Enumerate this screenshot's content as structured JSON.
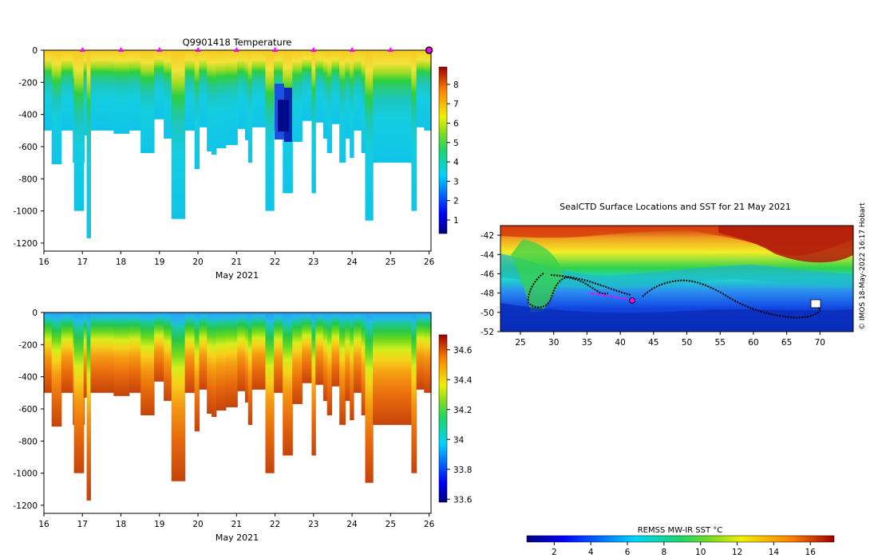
{
  "chart_data": [
    {
      "id": "temperature",
      "type": "heatmap",
      "title": "Q9901418  Temperature",
      "xlabel": "May 2021",
      "ylabel": "",
      "x_ticks": [
        "16",
        "17",
        "18",
        "19",
        "20",
        "21",
        "22",
        "23",
        "24",
        "25",
        "26"
      ],
      "x_range": [
        16,
        26.05
      ],
      "y_ticks": [
        "0",
        "-200",
        "-400",
        "-600",
        "-800",
        "-1000",
        "-1200"
      ],
      "y_range": [
        -1250,
        0
      ],
      "colorbar_ticks": [
        "1",
        "2",
        "3",
        "4",
        "5",
        "6",
        "7",
        "8"
      ],
      "colorbar_range": [
        0.3,
        8.9
      ],
      "marker_color": "#ff00ff",
      "markers_x": [
        17,
        18,
        19,
        20,
        21,
        22,
        23,
        24,
        25
      ],
      "last_marker_x": 26,
      "profile_columns": [
        {
          "x": 16.0,
          "w": 0.2,
          "depth": 500
        },
        {
          "x": 16.2,
          "w": 0.25,
          "depth": 710
        },
        {
          "x": 16.45,
          "w": 0.3,
          "depth": 500
        },
        {
          "x": 16.75,
          "w": 0.3,
          "depth": 700
        },
        {
          "x": 16.8,
          "w": 0.0,
          "depth": 0
        },
        {
          "x": 16.78,
          "w": 0.25,
          "depth": 1000
        },
        {
          "x": 17.03,
          "w": 0.08,
          "depth": 530
        },
        {
          "x": 17.11,
          "w": 0.1,
          "depth": 1170
        },
        {
          "x": 17.21,
          "w": 0.6,
          "depth": 500
        },
        {
          "x": 17.81,
          "w": 0.4,
          "depth": 520
        },
        {
          "x": 18.21,
          "w": 0.3,
          "depth": 500
        },
        {
          "x": 18.51,
          "w": 0.35,
          "depth": 640
        },
        {
          "x": 18.86,
          "w": 0.25,
          "depth": 430
        },
        {
          "x": 19.11,
          "w": 0.2,
          "depth": 550
        },
        {
          "x": 19.31,
          "w": 0.35,
          "depth": 1050
        },
        {
          "x": 19.66,
          "w": 0.25,
          "depth": 500
        },
        {
          "x": 19.91,
          "w": 0.12,
          "depth": 740
        },
        {
          "x": 20.03,
          "w": 0.2,
          "depth": 480
        },
        {
          "x": 20.23,
          "w": 0.12,
          "depth": 630
        },
        {
          "x": 20.35,
          "w": 0.12,
          "depth": 650
        },
        {
          "x": 20.47,
          "w": 0.25,
          "depth": 610
        },
        {
          "x": 20.72,
          "w": 0.3,
          "depth": 590
        },
        {
          "x": 21.02,
          "w": 0.2,
          "depth": 490
        },
        {
          "x": 21.22,
          "w": 0.08,
          "depth": 560
        },
        {
          "x": 21.3,
          "w": 0.1,
          "depth": 700
        },
        {
          "x": 21.4,
          "w": 0.35,
          "depth": 480
        },
        {
          "x": 21.75,
          "w": 0.22,
          "depth": 1000
        },
        {
          "x": 21.97,
          "w": 0.23,
          "depth": 500
        },
        {
          "x": 22.2,
          "w": 0.25,
          "depth": 890
        },
        {
          "x": 22.45,
          "w": 0.25,
          "depth": 570
        },
        {
          "x": 22.7,
          "w": 0.25,
          "depth": 440
        },
        {
          "x": 22.95,
          "w": 0.1,
          "depth": 890
        },
        {
          "x": 23.05,
          "w": 0.2,
          "depth": 450
        },
        {
          "x": 23.25,
          "w": 0.1,
          "depth": 550
        },
        {
          "x": 23.35,
          "w": 0.12,
          "depth": 640
        },
        {
          "x": 23.47,
          "w": 0.2,
          "depth": 460
        },
        {
          "x": 23.67,
          "w": 0.15,
          "depth": 700
        },
        {
          "x": 23.82,
          "w": 0.12,
          "depth": 550
        },
        {
          "x": 23.94,
          "w": 0.1,
          "depth": 670
        },
        {
          "x": 24.04,
          "w": 0.2,
          "depth": 500
        },
        {
          "x": 24.24,
          "w": 0.1,
          "depth": 640
        },
        {
          "x": 24.34,
          "w": 0.2,
          "depth": 1060
        },
        {
          "x": 24.54,
          "w": 0.3,
          "depth": 700
        },
        {
          "x": 24.84,
          "w": 0.7,
          "depth": 700
        },
        {
          "x": 25.54,
          "w": 0.13,
          "depth": 1000
        },
        {
          "x": 25.67,
          "w": 0.2,
          "depth": 480
        },
        {
          "x": 25.87,
          "w": 0.18,
          "depth": 500
        }
      ]
    },
    {
      "id": "salinity",
      "type": "heatmap",
      "title": "",
      "xlabel": "May 2021",
      "ylabel": "",
      "x_ticks": [
        "16",
        "17",
        "18",
        "19",
        "20",
        "21",
        "22",
        "23",
        "24",
        "25",
        "26"
      ],
      "x_range": [
        16,
        26.05
      ],
      "y_ticks": [
        "0",
        "-200",
        "-400",
        "-600",
        "-800",
        "-1000",
        "-1200"
      ],
      "y_range": [
        -1250,
        0
      ],
      "colorbar_ticks": [
        "33.6",
        "33.8",
        "34",
        "34.2",
        "34.4",
        "34.6"
      ],
      "colorbar_range": [
        33.58,
        34.7
      ]
    },
    {
      "id": "sst-map",
      "type": "heatmap",
      "title": "SealCTD Surface Locations and SST for 21 May 2021",
      "xlabel": "",
      "ylabel": "",
      "x_ticks": [
        "25",
        "30",
        "35",
        "40",
        "45",
        "50",
        "55",
        "60",
        "65",
        "70"
      ],
      "x_range": [
        22,
        75
      ],
      "y_ticks": [
        "-42",
        "-44",
        "-46",
        "-48",
        "-50",
        "-52"
      ],
      "y_range": [
        -52,
        -41
      ],
      "track_color": "#000000",
      "recent_track_color": "#ff00ff",
      "colorbar_label": "REMSS MW-IR SST °C",
      "colorbar_ticks": [
        "2",
        "4",
        "6",
        "8",
        "10",
        "12",
        "14",
        "16"
      ],
      "colorbar_range": [
        0.5,
        17.3
      ]
    }
  ],
  "credit": "© IMOS 18-May-2022 16:17 Hobart"
}
